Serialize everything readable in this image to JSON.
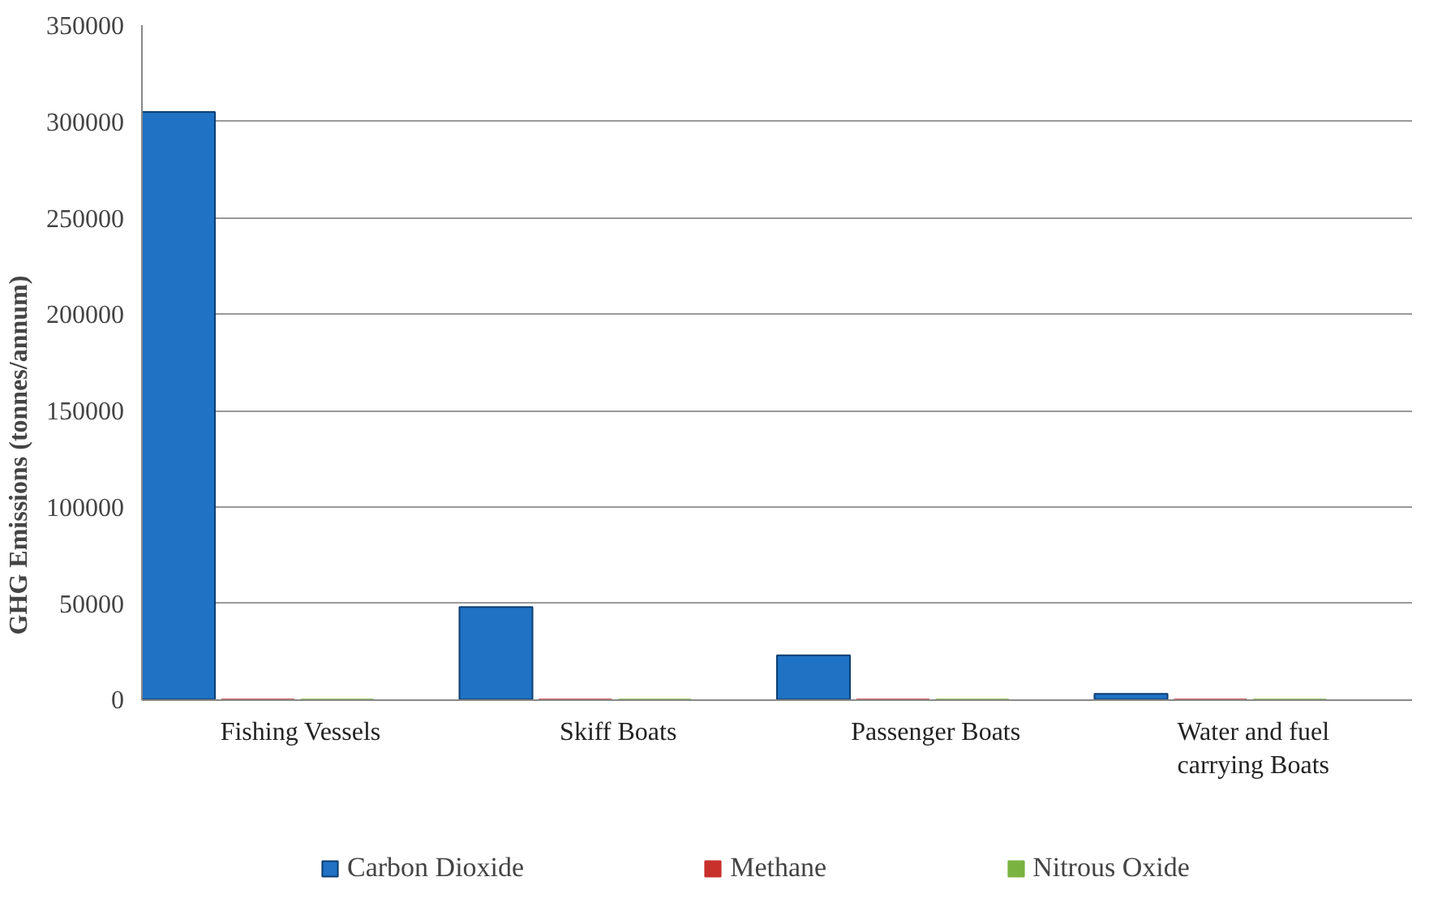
{
  "chart_data": {
    "type": "bar",
    "ylabel": "GHG Emissions (tonnes/annum)",
    "categories": [
      "Fishing Vessels",
      "Skiff Boats",
      "Passenger Boats",
      "Water and fuel\ncarrying Boats"
    ],
    "series": [
      {
        "name": "Carbon Dioxide",
        "color": "#1f72c4",
        "values": [
          305000,
          48000,
          23000,
          3000
        ]
      },
      {
        "name": "Methane",
        "color": "#c8302c",
        "values": [
          0,
          0,
          0,
          0
        ]
      },
      {
        "name": "Nitrous Oxide",
        "color": "#7ab340",
        "values": [
          0,
          0,
          0,
          0
        ]
      }
    ],
    "ylim": [
      0,
      350000
    ],
    "yticks": [
      0,
      50000,
      100000,
      150000,
      200000,
      250000,
      300000,
      350000
    ],
    "grid": "y",
    "legend": "bottom"
  }
}
